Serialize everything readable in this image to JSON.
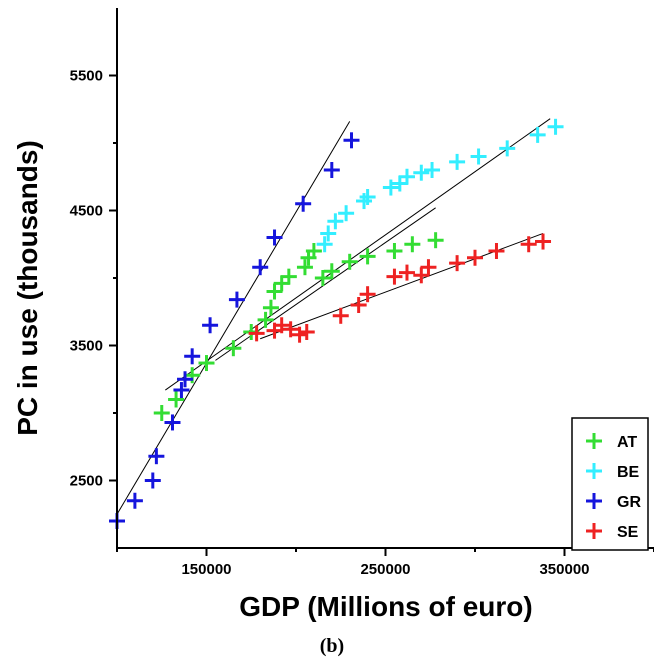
{
  "chart_data": {
    "type": "scatter",
    "caption": "(b)",
    "xlabel": "GDP (Millions of euro)",
    "ylabel": "PC in use (thousands)",
    "xlim": [
      100000,
      400000
    ],
    "ylim": [
      2000,
      6000
    ],
    "x_ticks": [
      150000,
      250000,
      350000
    ],
    "x_tick_labels": [
      "150000",
      "250000",
      "350000"
    ],
    "y_ticks": [
      2500,
      3500,
      4500,
      5500
    ],
    "y_tick_labels": [
      "2500",
      "3500",
      "4500",
      "5500"
    ],
    "grid": false,
    "legend_position": "bottom-right",
    "marker": "plus",
    "series": [
      {
        "name": "AT",
        "color": "#33dd33",
        "points": [
          [
            125000,
            3000
          ],
          [
            133000,
            3100
          ],
          [
            142000,
            3280
          ],
          [
            150000,
            3370
          ],
          [
            165000,
            3480
          ],
          [
            175000,
            3600
          ],
          [
            183000,
            3690
          ],
          [
            186000,
            3780
          ],
          [
            188000,
            3900
          ],
          [
            192000,
            3960
          ],
          [
            196000,
            4010
          ],
          [
            205000,
            4080
          ],
          [
            207000,
            4150
          ],
          [
            210000,
            4200
          ],
          [
            215000,
            4000
          ],
          [
            220000,
            4050
          ],
          [
            230000,
            4120
          ],
          [
            240000,
            4160
          ],
          [
            255000,
            4200
          ],
          [
            265000,
            4250
          ],
          [
            278000,
            4280
          ]
        ]
      },
      {
        "name": "BE",
        "color": "#33eeff",
        "points": [
          [
            216000,
            4250
          ],
          [
            218000,
            4330
          ],
          [
            222000,
            4420
          ],
          [
            228000,
            4480
          ],
          [
            238000,
            4570
          ],
          [
            240000,
            4600
          ],
          [
            253000,
            4670
          ],
          [
            258000,
            4700
          ],
          [
            262000,
            4750
          ],
          [
            270000,
            4780
          ],
          [
            276000,
            4800
          ],
          [
            290000,
            4860
          ],
          [
            302000,
            4900
          ],
          [
            318000,
            4960
          ],
          [
            335000,
            5060
          ],
          [
            345000,
            5120
          ]
        ]
      },
      {
        "name": "GR",
        "color": "#1515dd",
        "points": [
          [
            100000,
            2200
          ],
          [
            110000,
            2350
          ],
          [
            120000,
            2500
          ],
          [
            122000,
            2680
          ],
          [
            131000,
            2930
          ],
          [
            136000,
            3170
          ],
          [
            138000,
            3250
          ],
          [
            142000,
            3420
          ],
          [
            152000,
            3650
          ],
          [
            167000,
            3840
          ],
          [
            180000,
            4080
          ],
          [
            188000,
            4300
          ],
          [
            204000,
            4550
          ],
          [
            220000,
            4800
          ],
          [
            231000,
            5020
          ]
        ]
      },
      {
        "name": "SE",
        "color": "#ee2222",
        "points": [
          [
            178000,
            3590
          ],
          [
            188000,
            3610
          ],
          [
            192000,
            3650
          ],
          [
            197000,
            3620
          ],
          [
            202000,
            3580
          ],
          [
            206000,
            3600
          ],
          [
            225000,
            3720
          ],
          [
            235000,
            3800
          ],
          [
            240000,
            3880
          ],
          [
            255000,
            4010
          ],
          [
            262000,
            4040
          ],
          [
            270000,
            4020
          ],
          [
            274000,
            4080
          ],
          [
            290000,
            4110
          ],
          [
            300000,
            4150
          ],
          [
            312000,
            4200
          ],
          [
            330000,
            4250
          ],
          [
            338000,
            4270
          ]
        ]
      }
    ],
    "fit_lines": [
      {
        "from": [
          100000,
          2250
        ],
        "to": [
          230000,
          5160
        ]
      },
      {
        "from": [
          127000,
          3170
        ],
        "to": [
          342000,
          5180
        ]
      },
      {
        "from": [
          155000,
          3390
        ],
        "to": [
          278000,
          4520
        ]
      },
      {
        "from": [
          180000,
          3550
        ],
        "to": [
          338000,
          4330
        ]
      }
    ]
  }
}
